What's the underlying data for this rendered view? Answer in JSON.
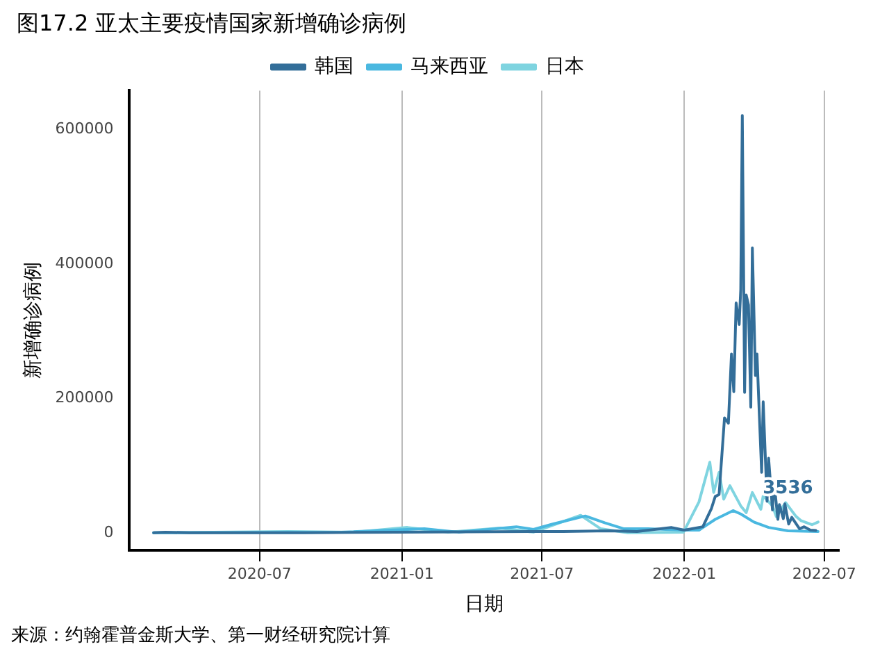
{
  "chart_data": {
    "type": "line",
    "title": "图17.2 亚太主要疫情国家新增确诊病例",
    "xlabel": "日期",
    "ylabel": "新增确诊病例",
    "legend": "top",
    "grid": "x",
    "marker": "none",
    "line_style": "solid",
    "xlim": [
      "2020-01-14",
      "2022-07-20"
    ],
    "xticks": [
      "2020-07",
      "2021-01",
      "2021-07",
      "2022-01",
      "2022-07"
    ],
    "ylim": [
      -26000,
      658000
    ],
    "yticks": [
      0,
      200000,
      400000,
      600000
    ],
    "annotations": [
      {
        "text": "3536",
        "x": "2022-06-20",
        "y": 3536
      },
      "来源：约翰霍普金斯大学、第一财经研究院计算"
    ],
    "series": [
      {
        "name": "韩国",
        "color": "#336e99",
        "x": [
          "2020-02-15",
          "2020-03-01",
          "2020-04-01",
          "2020-08-27",
          "2020-12-25",
          "2021-07-28",
          "2021-09-25",
          "2021-11-01",
          "2021-12-15",
          "2022-01-01",
          "2022-01-25",
          "2022-02-05",
          "2022-02-10",
          "2022-02-15",
          "2022-02-22",
          "2022-02-27",
          "2022-03-03",
          "2022-03-06",
          "2022-03-09",
          "2022-03-13",
          "2022-03-15",
          "2022-03-17",
          "2022-03-20",
          "2022-03-22",
          "2022-03-25",
          "2022-03-28",
          "2022-03-30",
          "2022-04-03",
          "2022-04-05",
          "2022-04-07",
          "2022-04-11",
          "2022-04-13",
          "2022-04-18",
          "2022-04-20",
          "2022-04-25",
          "2022-04-27",
          "2022-05-02",
          "2022-05-04",
          "2022-05-09",
          "2022-05-11",
          "2022-05-16",
          "2022-05-20",
          "2022-05-30",
          "2022-06-05",
          "2022-06-13",
          "2022-06-20"
        ],
        "values": [
          0,
          1000,
          0,
          0,
          1000,
          2000,
          3000,
          2000,
          8000,
          4000,
          9000,
          36000,
          54000,
          57000,
          171000,
          163000,
          266000,
          210000,
          342000,
          310000,
          362000,
          621000,
          209000,
          354000,
          339000,
          187000,
          424000,
          234000,
          266000,
          205000,
          90000,
          195000,
          47000,
          111000,
          34000,
          76000,
          20000,
          42000,
          21000,
          43000,
          13000,
          23000,
          6000,
          9000,
          4000,
          3536
        ]
      },
      {
        "name": "马来西亚",
        "color": "#4ab8e0",
        "x": [
          "2020-02-15",
          "2020-10-15",
          "2021-01-30",
          "2021-03-15",
          "2021-05-29",
          "2021-06-20",
          "2021-07-15",
          "2021-08-26",
          "2021-09-20",
          "2021-10-15",
          "2021-11-15",
          "2021-12-31",
          "2022-01-20",
          "2022-02-10",
          "2022-03-05",
          "2022-03-15",
          "2022-04-01",
          "2022-04-20",
          "2022-05-15",
          "2022-06-23"
        ],
        "values": [
          0,
          1000,
          6000,
          1000,
          9000,
          5000,
          13000,
          25000,
          15000,
          6000,
          6000,
          4000,
          4000,
          20000,
          33000,
          28000,
          16000,
          8000,
          3000,
          2000
        ]
      },
      {
        "name": "日本",
        "color": "#7fd4e0",
        "x": [
          "2020-02-15",
          "2020-08-07",
          "2020-11-01",
          "2021-01-08",
          "2021-03-01",
          "2021-05-08",
          "2021-06-20",
          "2021-08-20",
          "2021-09-15",
          "2021-10-20",
          "2021-12-31",
          "2022-01-20",
          "2022-02-03",
          "2022-02-08",
          "2022-02-15",
          "2022-02-21",
          "2022-03-01",
          "2022-03-15",
          "2022-03-22",
          "2022-03-30",
          "2022-04-10",
          "2022-04-13",
          "2022-04-25",
          "2022-04-30",
          "2022-05-12",
          "2022-05-25",
          "2022-06-01",
          "2022-06-15",
          "2022-06-23"
        ],
        "values": [
          0,
          2000,
          1000,
          8000,
          1000,
          7000,
          1000,
          26000,
          6000,
          0,
          1000,
          46000,
          105000,
          60000,
          90000,
          50000,
          70000,
          40000,
          30000,
          60000,
          35000,
          55000,
          40000,
          24000,
          45000,
          25000,
          18000,
          12000,
          16000
        ]
      }
    ]
  }
}
